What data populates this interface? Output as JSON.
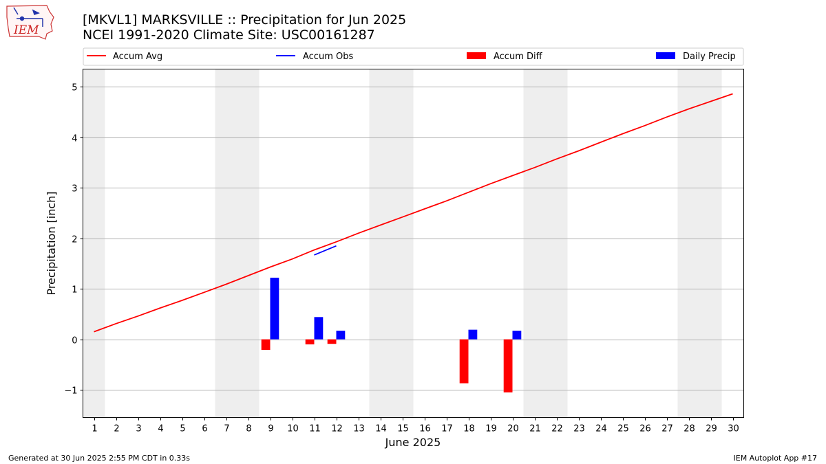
{
  "header": {
    "title_line1": "[MKVL1] MARKSVILLE :: Precipitation for Jun 2025",
    "title_line2": "NCEI 1991-2020 Climate Site: USC00161287"
  },
  "logo": {
    "text": "IEM",
    "icon": "iem-iowa-logo"
  },
  "footer": {
    "generated": "Generated at 30 Jun 2025 2:55 PM CDT in 0.33s",
    "app": "IEM Autoplot App #17"
  },
  "colors": {
    "avg": "#ff0000",
    "obs": "#0000ff",
    "diff": "#ff0000",
    "daily": "#0000ff",
    "weekend": "#eeeeee",
    "grid": "#b0b0b0"
  },
  "chart_data": {
    "type": "bar",
    "xlabel": "June 2025",
    "ylabel": "Precipitation [inch]",
    "xlim": [
      0.5,
      30.5
    ],
    "ylim": [
      -1.55,
      5.35
    ],
    "yticks": [
      -1,
      0,
      1,
      2,
      3,
      4,
      5
    ],
    "yticklabels": [
      "−1",
      "0",
      "1",
      "2",
      "3",
      "4",
      "5"
    ],
    "grid": "horizontal",
    "legend_position": "top",
    "days": [
      1,
      2,
      3,
      4,
      5,
      6,
      7,
      8,
      9,
      10,
      11,
      12,
      13,
      14,
      15,
      16,
      17,
      18,
      19,
      20,
      21,
      22,
      23,
      24,
      25,
      26,
      27,
      28,
      29,
      30
    ],
    "weekend_days": [
      1,
      7,
      8,
      14,
      15,
      21,
      22,
      28,
      29
    ],
    "legend": [
      "Accum Avg",
      "Accum Obs",
      "Accum Diff",
      "Daily Precip"
    ],
    "series": [
      {
        "name": "Accum Avg",
        "kind": "line",
        "color": "#ff0000",
        "x": [
          1,
          2,
          3,
          4,
          5,
          6,
          7,
          8,
          9,
          10,
          11,
          12,
          13,
          14,
          15,
          16,
          17,
          18,
          19,
          20,
          21,
          22,
          23,
          24,
          25,
          26,
          27,
          28,
          29,
          30
        ],
        "values": [
          0.15,
          0.31,
          0.46,
          0.62,
          0.77,
          0.93,
          1.09,
          1.26,
          1.43,
          1.59,
          1.77,
          1.93,
          2.1,
          2.26,
          2.42,
          2.58,
          2.74,
          2.91,
          3.08,
          3.24,
          3.4,
          3.57,
          3.73,
          3.9,
          4.07,
          4.23,
          4.4,
          4.56,
          4.71,
          4.86
        ]
      },
      {
        "name": "Accum Obs",
        "kind": "line",
        "color": "#0000ff",
        "x": [
          11,
          12
        ],
        "values": [
          1.67,
          1.85
        ]
      },
      {
        "name": "Accum Diff",
        "kind": "bar",
        "color": "#ff0000",
        "x": [
          9,
          11,
          12,
          18,
          20
        ],
        "values": [
          -0.21,
          -0.1,
          -0.09,
          -0.87,
          -1.05
        ]
      },
      {
        "name": "Daily Precip",
        "kind": "bar",
        "color": "#0000ff",
        "x": [
          9,
          11,
          12,
          18,
          20
        ],
        "values": [
          1.22,
          0.44,
          0.17,
          0.19,
          0.17
        ]
      }
    ]
  }
}
